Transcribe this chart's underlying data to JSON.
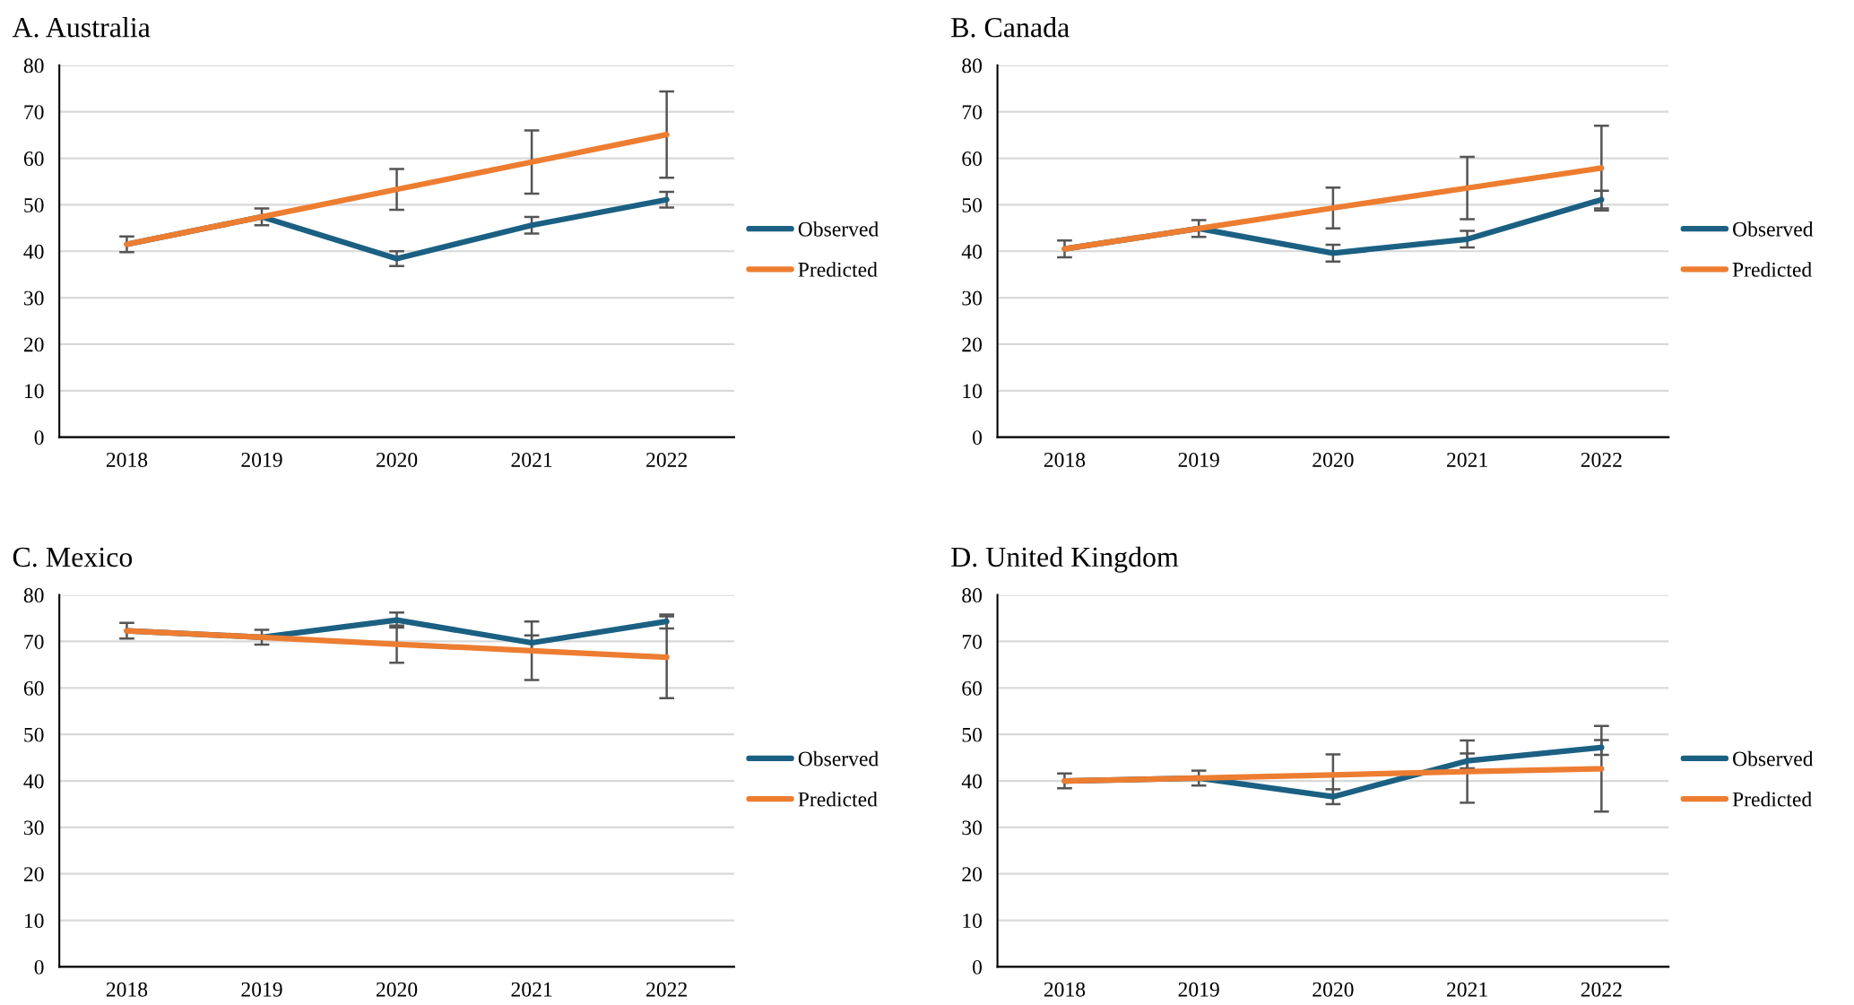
{
  "chart_data": [
    {
      "type": "line",
      "title": "A. Australia",
      "categories": [
        "2018",
        "2019",
        "2020",
        "2021",
        "2022"
      ],
      "ylim": [
        0,
        80
      ],
      "yticks": [
        0,
        10,
        20,
        30,
        40,
        50,
        60,
        70,
        80
      ],
      "grid": "y",
      "legend": "right",
      "series": [
        {
          "name": "Observed",
          "color": "#1b6082",
          "values": [
            41.5,
            47.4,
            38.4,
            45.6,
            51.1
          ],
          "errors": [
            1.7,
            1.8,
            1.6,
            1.8,
            1.7
          ]
        },
        {
          "name": "Predicted",
          "color": "#ed7d31",
          "values": [
            41.5,
            47.4,
            53.3,
            59.2,
            65.1
          ],
          "errors": [
            null,
            null,
            4.4,
            6.8,
            9.3
          ]
        }
      ]
    },
    {
      "type": "line",
      "title": "B. Canada",
      "categories": [
        "2018",
        "2019",
        "2020",
        "2021",
        "2022"
      ],
      "ylim": [
        0,
        80
      ],
      "yticks": [
        0,
        10,
        20,
        30,
        40,
        50,
        60,
        70,
        80
      ],
      "grid": "y",
      "legend": "right",
      "series": [
        {
          "name": "Observed",
          "color": "#1b6082",
          "values": [
            40.5,
            44.9,
            39.6,
            42.6,
            51.1
          ],
          "errors": [
            1.8,
            1.8,
            1.8,
            1.8,
            1.9
          ]
        },
        {
          "name": "Predicted",
          "color": "#ed7d31",
          "values": [
            40.5,
            44.9,
            49.3,
            53.6,
            57.9
          ],
          "errors": [
            null,
            null,
            4.4,
            6.7,
            9.1
          ]
        }
      ]
    },
    {
      "type": "line",
      "title": "C. Mexico",
      "categories": [
        "2018",
        "2019",
        "2020",
        "2021",
        "2022"
      ],
      "ylim": [
        0,
        80
      ],
      "yticks": [
        0,
        10,
        20,
        30,
        40,
        50,
        60,
        70,
        80
      ],
      "grid": "y",
      "legend": "right",
      "series": [
        {
          "name": "Observed",
          "color": "#1b6082",
          "values": [
            72.3,
            70.9,
            74.6,
            69.7,
            74.3
          ],
          "errors": [
            1.7,
            1.6,
            1.6,
            1.6,
            1.5
          ]
        },
        {
          "name": "Predicted",
          "color": "#ed7d31",
          "values": [
            72.3,
            70.9,
            69.4,
            68.0,
            66.6
          ],
          "errors": [
            null,
            null,
            4.0,
            6.3,
            8.8
          ]
        }
      ]
    },
    {
      "type": "line",
      "title": "D. United Kingdom",
      "categories": [
        "2018",
        "2019",
        "2020",
        "2021",
        "2022"
      ],
      "ylim": [
        0,
        80
      ],
      "yticks": [
        0,
        10,
        20,
        30,
        40,
        50,
        60,
        70,
        80
      ],
      "grid": "y",
      "legend": "right",
      "series": [
        {
          "name": "Observed",
          "color": "#1b6082",
          "values": [
            40.0,
            40.6,
            36.6,
            44.3,
            47.2
          ],
          "errors": [
            1.6,
            1.6,
            1.6,
            1.6,
            1.6
          ]
        },
        {
          "name": "Predicted",
          "color": "#ed7d31",
          "values": [
            40.0,
            40.6,
            41.3,
            42.0,
            42.6
          ],
          "errors": [
            null,
            null,
            4.4,
            6.7,
            9.2
          ]
        }
      ]
    }
  ]
}
